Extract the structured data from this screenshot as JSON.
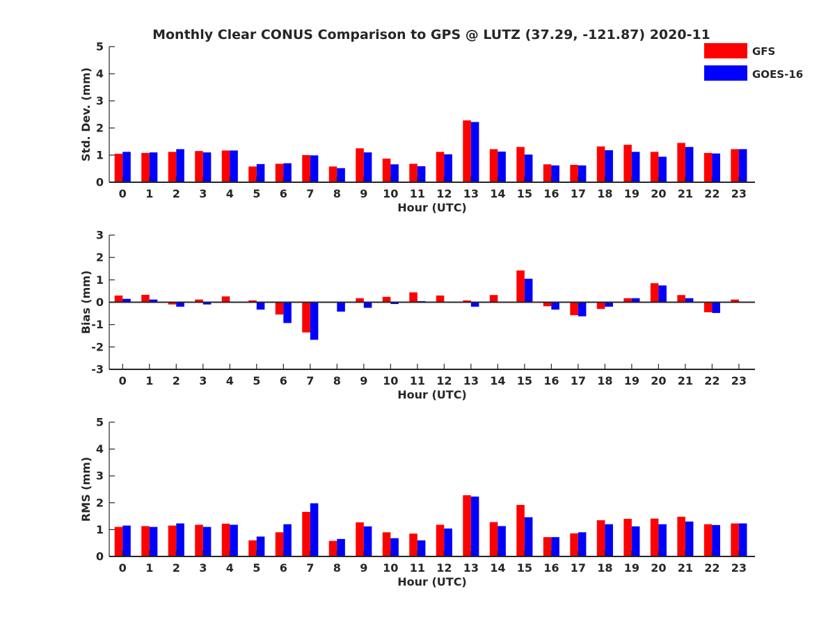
{
  "title": "Monthly Clear CONUS Comparison to GPS @ LUTZ (37.29, -121.87) 2020-11",
  "legend": [
    {
      "label": "GFS",
      "color": "#ff0000"
    },
    {
      "label": "GOES-16",
      "color": "#0000ff"
    }
  ],
  "chart_data": [
    {
      "type": "bar",
      "categories": [
        "0",
        "1",
        "2",
        "3",
        "4",
        "5",
        "6",
        "7",
        "8",
        "9",
        "10",
        "11",
        "12",
        "13",
        "14",
        "15",
        "16",
        "17",
        "18",
        "19",
        "20",
        "21",
        "22",
        "23"
      ],
      "xlabel": "Hour (UTC)",
      "ylabel": "Std. Dev. (mm)",
      "ylim": [
        0,
        5
      ],
      "yticks": [
        "0",
        "1",
        "2",
        "3",
        "4",
        "5"
      ],
      "series": [
        {
          "name": "GFS",
          "color": "#ff0000",
          "values": [
            1.05,
            1.08,
            1.12,
            1.15,
            1.17,
            0.58,
            0.68,
            1.0,
            0.58,
            1.25,
            0.87,
            0.68,
            1.12,
            2.28,
            1.22,
            1.3,
            0.66,
            0.64,
            1.32,
            1.38,
            1.12,
            1.45,
            1.08,
            1.22
          ]
        },
        {
          "name": "GOES-16",
          "color": "#0000ff",
          "values": [
            1.12,
            1.1,
            1.22,
            1.1,
            1.17,
            0.67,
            0.7,
            0.99,
            0.52,
            1.1,
            0.66,
            0.59,
            1.03,
            2.22,
            1.13,
            1.02,
            0.62,
            0.62,
            1.18,
            1.12,
            0.94,
            1.3,
            1.06,
            1.22
          ]
        }
      ]
    },
    {
      "type": "bar",
      "categories": [
        "0",
        "1",
        "2",
        "3",
        "4",
        "5",
        "6",
        "7",
        "8",
        "9",
        "10",
        "11",
        "12",
        "13",
        "14",
        "15",
        "16",
        "17",
        "18",
        "19",
        "20",
        "21",
        "22",
        "23"
      ],
      "xlabel": "Hour (UTC)",
      "ylabel": "Bias (mm)",
      "ylim": [
        -3,
        3
      ],
      "yticks": [
        "-3",
        "-2",
        "-1",
        "0",
        "1",
        "2",
        "3"
      ],
      "series": [
        {
          "name": "GFS",
          "color": "#ff0000",
          "values": [
            0.3,
            0.33,
            -0.1,
            0.12,
            0.26,
            0.08,
            -0.55,
            -1.35,
            0.02,
            0.18,
            0.24,
            0.44,
            0.3,
            0.08,
            0.32,
            1.42,
            -0.18,
            -0.58,
            -0.3,
            0.18,
            0.85,
            0.32,
            -0.45,
            0.12
          ]
        },
        {
          "name": "GOES-16",
          "color": "#0000ff",
          "values": [
            0.15,
            0.12,
            -0.2,
            -0.1,
            0.0,
            -0.33,
            -0.93,
            -1.68,
            -0.42,
            -0.25,
            -0.08,
            0.05,
            0.0,
            -0.2,
            0.0,
            1.05,
            -0.33,
            -0.63,
            -0.2,
            0.18,
            0.75,
            0.18,
            -0.48,
            0.0
          ]
        }
      ]
    },
    {
      "type": "bar",
      "categories": [
        "0",
        "1",
        "2",
        "3",
        "4",
        "5",
        "6",
        "7",
        "8",
        "9",
        "10",
        "11",
        "12",
        "13",
        "14",
        "15",
        "16",
        "17",
        "18",
        "19",
        "20",
        "21",
        "22",
        "23"
      ],
      "xlabel": "Hour (UTC)",
      "ylabel": "RMS (mm)",
      "ylim": [
        0,
        5
      ],
      "yticks": [
        "0",
        "1",
        "2",
        "3",
        "4",
        "5"
      ],
      "series": [
        {
          "name": "GFS",
          "color": "#ff0000",
          "values": [
            1.1,
            1.13,
            1.15,
            1.18,
            1.22,
            0.6,
            0.9,
            1.66,
            0.58,
            1.27,
            0.9,
            0.85,
            1.18,
            2.28,
            1.28,
            1.92,
            0.72,
            0.86,
            1.35,
            1.4,
            1.41,
            1.48,
            1.2,
            1.23
          ]
        },
        {
          "name": "GOES-16",
          "color": "#0000ff",
          "values": [
            1.15,
            1.1,
            1.23,
            1.1,
            1.18,
            0.74,
            1.2,
            1.98,
            0.65,
            1.12,
            0.68,
            0.6,
            1.04,
            2.23,
            1.13,
            1.46,
            0.72,
            0.9,
            1.2,
            1.12,
            1.2,
            1.3,
            1.17,
            1.23
          ]
        }
      ]
    }
  ]
}
